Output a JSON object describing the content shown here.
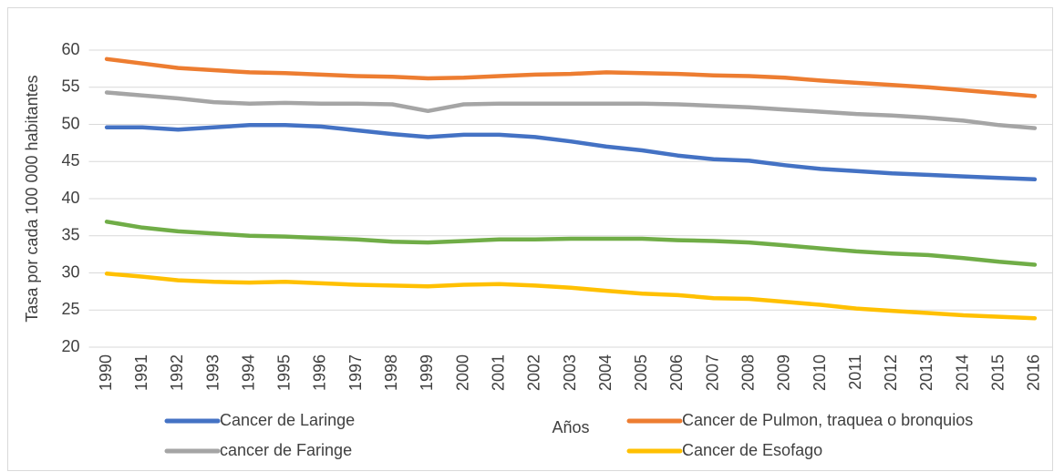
{
  "chart_data": {
    "type": "line",
    "y_label": "Tasa por  cada 100 000 habitantes",
    "x_label": "Años",
    "categories": [
      "1990",
      "1991",
      "1992",
      "1993",
      "1994",
      "1995",
      "1996",
      "1997",
      "1998",
      "1999",
      "2000",
      "2001",
      "2002",
      "2003",
      "2004",
      "2005",
      "2006",
      "2007",
      "2008",
      "2009",
      "2010",
      "2011",
      "2012",
      "2013",
      "2014",
      "2015",
      "2016"
    ],
    "series": [
      {
        "name": "Cancer de Laringe",
        "color": "#4472c4",
        "values": [
          49.6,
          49.6,
          49.3,
          49.6,
          49.9,
          49.9,
          49.7,
          49.2,
          48.7,
          48.3,
          48.6,
          48.6,
          48.3,
          47.7,
          47.0,
          46.5,
          45.8,
          45.3,
          45.1,
          44.5,
          44.0,
          43.7,
          43.4,
          43.2,
          43.0,
          42.8,
          42.6
        ]
      },
      {
        "name": "Cancer de Pulmon, traquea o bronquios",
        "color": "#ed7d31",
        "values": [
          58.8,
          58.2,
          57.6,
          57.3,
          57.0,
          56.9,
          56.7,
          56.5,
          56.4,
          56.2,
          56.3,
          56.5,
          56.7,
          56.8,
          57.0,
          56.9,
          56.8,
          56.6,
          56.5,
          56.3,
          55.9,
          55.6,
          55.3,
          55.0,
          54.6,
          54.2,
          53.8
        ]
      },
      {
        "name": "cancer de Faringe",
        "color": "#a5a5a5",
        "values": [
          54.3,
          53.9,
          53.5,
          53.0,
          52.8,
          52.9,
          52.8,
          52.8,
          52.7,
          51.8,
          52.7,
          52.8,
          52.8,
          52.8,
          52.8,
          52.8,
          52.7,
          52.5,
          52.3,
          52.0,
          51.7,
          51.4,
          51.2,
          50.9,
          50.5,
          49.9,
          49.5
        ]
      },
      {
        "name": "Cancer de Esofago",
        "color": "#ffc000",
        "values": [
          29.9,
          29.5,
          29.0,
          28.8,
          28.7,
          28.8,
          28.6,
          28.4,
          28.3,
          28.2,
          28.4,
          28.5,
          28.3,
          28.0,
          27.6,
          27.2,
          27.0,
          26.6,
          26.5,
          26.1,
          25.7,
          25.2,
          24.9,
          24.6,
          24.3,
          24.1,
          23.9
        ]
      },
      {
        "color": "#70ad47",
        "values": [
          36.9,
          36.1,
          35.6,
          35.3,
          35.0,
          34.9,
          34.7,
          34.5,
          34.2,
          34.1,
          34.3,
          34.5,
          34.5,
          34.6,
          34.6,
          34.6,
          34.4,
          34.3,
          34.1,
          33.7,
          33.3,
          32.9,
          32.6,
          32.4,
          32.0,
          31.5,
          31.1
        ]
      }
    ],
    "ylim": [
      20,
      60
    ],
    "yticks": [
      20,
      25,
      30,
      35,
      40,
      45,
      50,
      55,
      60
    ],
    "grid": true
  }
}
